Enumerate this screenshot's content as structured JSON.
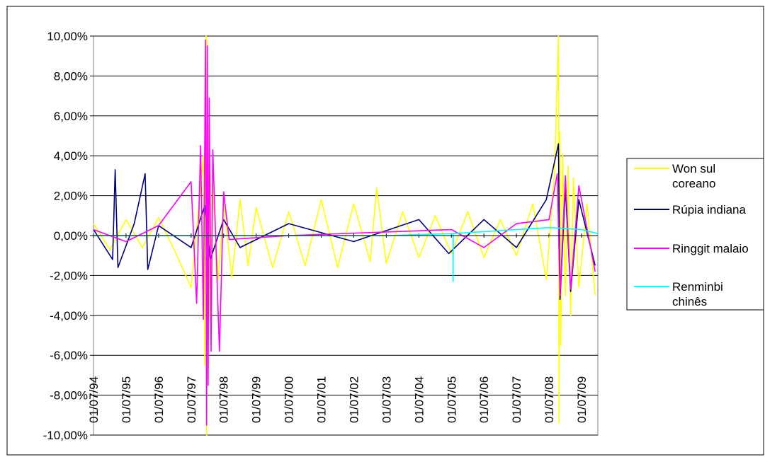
{
  "chart_data": {
    "type": "line",
    "title": "",
    "xlabel": "",
    "ylabel": "",
    "ylim": [
      -10,
      10
    ],
    "y_unit": "%",
    "y_ticks": [
      "10,00%",
      "8,00%",
      "6,00%",
      "4,00%",
      "2,00%",
      "0,00%",
      "-2,00%",
      "-4,00%",
      "-6,00%",
      "-8,00%",
      "-10,00%"
    ],
    "y_tick_values": [
      10,
      8,
      6,
      4,
      2,
      0,
      -2,
      -4,
      -6,
      -8,
      -10
    ],
    "x_ticks": [
      "01/07/94",
      "01/07/95",
      "01/07/96",
      "01/07/97",
      "01/07/98",
      "01/07/99",
      "01/07/00",
      "01/07/01",
      "01/07/02",
      "01/07/03",
      "01/07/04",
      "01/07/05",
      "01/07/06",
      "01/07/07",
      "01/07/08",
      "01/07/09"
    ],
    "x_range": [
      "01/07/94",
      "31/12/09"
    ],
    "grid": "horizontal",
    "legend_position": "right",
    "series": [
      {
        "name": "Won sul coreano",
        "color": "#ffff00",
        "points": [
          [
            "01/07/94",
            0.6
          ],
          [
            "01/01/95",
            -0.7
          ],
          [
            "01/07/95",
            0.8
          ],
          [
            "01/01/96",
            -0.6
          ],
          [
            "01/07/96",
            0.9
          ],
          [
            "01/01/97",
            -0.8
          ],
          [
            "01/07/97",
            -2.6
          ],
          [
            "15/11/97",
            4.0
          ],
          [
            "01/12/97",
            -6.5
          ],
          [
            "10/12/97",
            9.3
          ],
          [
            "16/12/97",
            10.0
          ],
          [
            "23/12/97",
            -10.0
          ],
          [
            "30/12/97",
            9.8
          ],
          [
            "08/01/98",
            -7.2
          ],
          [
            "15/01/98",
            5.6
          ],
          [
            "23/01/98",
            -4.1
          ],
          [
            "02/02/98",
            3.2
          ],
          [
            "13/02/98",
            -2.8
          ],
          [
            "01/03/98",
            2.5
          ],
          [
            "01/05/98",
            -2.2
          ],
          [
            "01/07/98",
            1.6
          ],
          [
            "01/10/98",
            -2.1
          ],
          [
            "01/01/99",
            1.8
          ],
          [
            "01/04/99",
            -1.5
          ],
          [
            "01/07/99",
            1.4
          ],
          [
            "01/01/00",
            -1.6
          ],
          [
            "01/07/00",
            1.2
          ],
          [
            "01/01/01",
            -1.5
          ],
          [
            "01/07/01",
            1.8
          ],
          [
            "01/01/02",
            -1.6
          ],
          [
            "01/07/02",
            1.6
          ],
          [
            "01/01/03",
            -1.3
          ],
          [
            "15/03/03",
            2.4
          ],
          [
            "01/07/03",
            -1.4
          ],
          [
            "01/01/04",
            1.2
          ],
          [
            "01/07/04",
            -1.1
          ],
          [
            "01/01/05",
            1.0
          ],
          [
            "01/07/05",
            -0.9
          ],
          [
            "01/01/06",
            1.2
          ],
          [
            "01/07/06",
            -1.1
          ],
          [
            "01/01/07",
            0.8
          ],
          [
            "01/07/07",
            -1.0
          ],
          [
            "01/01/08",
            1.6
          ],
          [
            "01/06/08",
            -2.2
          ],
          [
            "01/09/08",
            3.2
          ],
          [
            "15/10/08",
            10.0
          ],
          [
            "22/10/08",
            -9.4
          ],
          [
            "29/10/08",
            5.2
          ],
          [
            "10/11/08",
            -5.5
          ],
          [
            "01/12/08",
            4.1
          ],
          [
            "01/01/09",
            -3.0
          ],
          [
            "01/02/09",
            3.5
          ],
          [
            "01/03/09",
            -4.0
          ],
          [
            "01/04/09",
            2.9
          ],
          [
            "01/06/09",
            -2.6
          ],
          [
            "01/09/09",
            1.6
          ],
          [
            "01/12/09",
            -3.0
          ]
        ]
      },
      {
        "name": "Rúpia indiana",
        "color": "#000080",
        "points": [
          [
            "01/07/94",
            0.3
          ],
          [
            "01/02/95",
            -1.2
          ],
          [
            "01/03/95",
            3.3
          ],
          [
            "01/04/95",
            -1.6
          ],
          [
            "01/10/95",
            0.6
          ],
          [
            "01/02/96",
            3.1
          ],
          [
            "01/03/96",
            -1.7
          ],
          [
            "01/07/96",
            0.5
          ],
          [
            "01/07/97",
            -0.6
          ],
          [
            "01/12/97",
            1.5
          ],
          [
            "01/02/98",
            -1.2
          ],
          [
            "01/07/98",
            0.8
          ],
          [
            "01/01/99",
            -0.6
          ],
          [
            "01/07/00",
            0.6
          ],
          [
            "01/07/02",
            -0.3
          ],
          [
            "01/07/04",
            0.8
          ],
          [
            "01/06/05",
            -0.9
          ],
          [
            "01/07/06",
            0.8
          ],
          [
            "01/07/07",
            -0.6
          ],
          [
            "01/06/08",
            1.8
          ],
          [
            "15/10/08",
            4.6
          ],
          [
            "01/11/08",
            -3.2
          ],
          [
            "01/01/09",
            2.4
          ],
          [
            "01/03/09",
            -2.8
          ],
          [
            "01/06/09",
            1.8
          ],
          [
            "01/12/09",
            -1.5
          ]
        ]
      },
      {
        "name": "Ringgit malaio",
        "color": "#ff00ff",
        "points": [
          [
            "01/07/94",
            0.3
          ],
          [
            "01/07/95",
            -0.3
          ],
          [
            "01/07/96",
            0.5
          ],
          [
            "01/07/97",
            2.7
          ],
          [
            "01/09/97",
            -3.4
          ],
          [
            "15/10/97",
            4.5
          ],
          [
            "15/11/97",
            -4.2
          ],
          [
            "10/12/97",
            9.8
          ],
          [
            "22/12/97",
            -9.5
          ],
          [
            "30/12/97",
            9.5
          ],
          [
            "08/01/98",
            -7.5
          ],
          [
            "20/01/98",
            6.9
          ],
          [
            "10/02/98",
            -5.8
          ],
          [
            "01/03/98",
            4.3
          ],
          [
            "15/05/98",
            -5.8
          ],
          [
            "01/07/98",
            2.2
          ],
          [
            "01/09/98",
            -0.2
          ],
          [
            "01/07/00",
            0.0
          ],
          [
            "01/07/05",
            0.3
          ],
          [
            "01/07/06",
            -0.6
          ],
          [
            "01/07/07",
            0.6
          ],
          [
            "01/07/08",
            0.8
          ],
          [
            "01/10/08",
            3.1
          ],
          [
            "01/11/08",
            -3.0
          ],
          [
            "01/01/09",
            3.0
          ],
          [
            "01/03/09",
            -2.7
          ],
          [
            "01/06/09",
            2.5
          ],
          [
            "01/12/09",
            -1.8
          ]
        ]
      },
      {
        "name": "Renminbi chinês",
        "color": "#00ffff",
        "points": [
          [
            "01/07/94",
            0.0
          ],
          [
            "01/07/97",
            0.0
          ],
          [
            "01/07/99",
            0.0
          ],
          [
            "01/07/01",
            0.0
          ],
          [
            "01/07/03",
            0.0
          ],
          [
            "20/07/05",
            0.1
          ],
          [
            "21/07/05",
            -2.3
          ],
          [
            "22/07/05",
            0.1
          ],
          [
            "01/07/06",
            0.2
          ],
          [
            "01/07/07",
            0.3
          ],
          [
            "01/07/08",
            0.4
          ],
          [
            "01/07/09",
            0.3
          ],
          [
            "31/12/09",
            0.1
          ]
        ]
      }
    ]
  }
}
